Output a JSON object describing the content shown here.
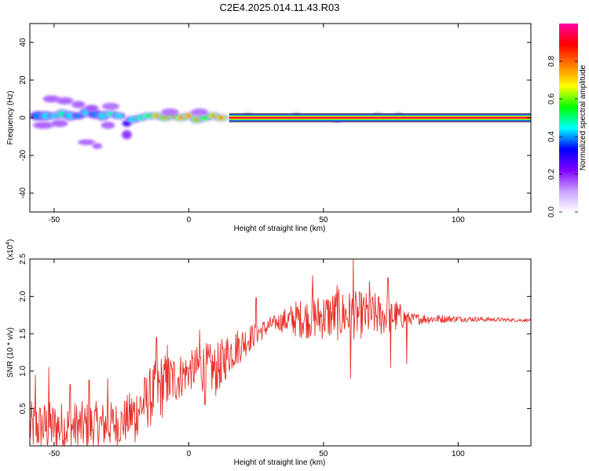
{
  "title": "C2E4.2025.014.11.43.R03",
  "chart_data": [
    {
      "type": "heatmap",
      "name": "spectrogram",
      "xlabel": "Height of straight line (km)",
      "ylabel": "Frequency (Hz)",
      "xlim": [
        -59,
        127
      ],
      "ylim": [
        -50,
        50
      ],
      "x_ticks": [
        -50,
        0,
        50,
        100
      ],
      "y_ticks": [
        -40,
        -20,
        0,
        20,
        40
      ],
      "colorbar": {
        "label": "Normalized spectral amplitude",
        "range": [
          0,
          1
        ],
        "ticks": [
          0.0,
          0.2,
          0.4,
          0.6,
          0.8
        ],
        "tick_labels": [
          "0.0",
          "0.2",
          "0.4",
          "0.6",
          "0.8"
        ],
        "colormap": [
          "#ffffff",
          "#c8a0ff",
          "#7f00ff",
          "#0000ff",
          "#00ffff",
          "#00ff00",
          "#ffff00",
          "#ff8000",
          "#ff0000",
          "#ff00a0"
        ]
      },
      "band": {
        "x_start": 15,
        "x_end": 127,
        "freq": 0,
        "half_width_hz": 1.5,
        "level": 0.95
      },
      "blobs": [
        {
          "x": -56,
          "y": 1,
          "w": 2.5,
          "h": 2,
          "v": 0.45
        },
        {
          "x": -53,
          "y": 1,
          "w": 2,
          "h": 2,
          "v": 0.5
        },
        {
          "x": -50,
          "y": 1,
          "w": 2,
          "h": 1.5,
          "v": 0.5
        },
        {
          "x": -47,
          "y": 2,
          "w": 2,
          "h": 2,
          "v": 0.55
        },
        {
          "x": -44,
          "y": 1,
          "w": 2,
          "h": 2,
          "v": 0.5
        },
        {
          "x": -41,
          "y": 1,
          "w": 2,
          "h": 1.5,
          "v": 0.45
        },
        {
          "x": -38,
          "y": 3,
          "w": 2,
          "h": 2,
          "v": 0.5
        },
        {
          "x": -35,
          "y": 2,
          "w": 2,
          "h": 2,
          "v": 0.45
        },
        {
          "x": -32,
          "y": 1,
          "w": 2,
          "h": 2,
          "v": 0.5
        },
        {
          "x": -29,
          "y": 2,
          "w": 2,
          "h": 1.5,
          "v": 0.55
        },
        {
          "x": -26,
          "y": 1,
          "w": 2,
          "h": 1.5,
          "v": 0.5
        },
        {
          "x": -23,
          "y": -3,
          "w": 1.5,
          "h": 1.5,
          "v": 0.4
        },
        {
          "x": -21,
          "y": -1,
          "w": 2,
          "h": 1.5,
          "v": 0.5
        },
        {
          "x": -18,
          "y": 0,
          "w": 2,
          "h": 1.5,
          "v": 0.55
        },
        {
          "x": -15,
          "y": 1,
          "w": 2,
          "h": 1.5,
          "v": 0.6
        },
        {
          "x": -12,
          "y": 1,
          "w": 2,
          "h": 1.5,
          "v": 0.75
        },
        {
          "x": -9,
          "y": 0,
          "w": 2,
          "h": 1.5,
          "v": 0.7
        },
        {
          "x": -6,
          "y": 1,
          "w": 2,
          "h": 1.5,
          "v": 0.7
        },
        {
          "x": -3,
          "y": 0,
          "w": 2,
          "h": 1.5,
          "v": 0.75
        },
        {
          "x": 0,
          "y": 1,
          "w": 2,
          "h": 1.5,
          "v": 0.8
        },
        {
          "x": 3,
          "y": -1,
          "w": 2,
          "h": 1.5,
          "v": 0.7
        },
        {
          "x": 6,
          "y": 0,
          "w": 2,
          "h": 1.5,
          "v": 0.65
        },
        {
          "x": 9,
          "y": 1,
          "w": 2,
          "h": 1.5,
          "v": 0.75
        },
        {
          "x": 12,
          "y": 0,
          "w": 2,
          "h": 1.5,
          "v": 0.8
        },
        {
          "x": -51,
          "y": 10,
          "w": 2.5,
          "h": 1.5,
          "v": 0.2
        },
        {
          "x": -46,
          "y": 9,
          "w": 2.5,
          "h": 1.5,
          "v": 0.2
        },
        {
          "x": -41,
          "y": 7,
          "w": 2,
          "h": 1.5,
          "v": 0.2
        },
        {
          "x": -36,
          "y": 5,
          "w": 2,
          "h": 1.5,
          "v": 0.22
        },
        {
          "x": -54,
          "y": -4,
          "w": 3,
          "h": 1.5,
          "v": 0.2
        },
        {
          "x": -48,
          "y": -3,
          "w": 2.5,
          "h": 1.5,
          "v": 0.2
        },
        {
          "x": -30,
          "y": -4,
          "w": 2,
          "h": 1.5,
          "v": 0.2
        },
        {
          "x": -23,
          "y": -9,
          "w": 1.5,
          "h": 2,
          "v": 0.25
        },
        {
          "x": -38,
          "y": -13,
          "w": 2.5,
          "h": 1.2,
          "v": 0.2
        },
        {
          "x": -34,
          "y": -15,
          "w": 1.5,
          "h": 1.2,
          "v": 0.2
        },
        {
          "x": -29,
          "y": 6,
          "w": 2.5,
          "h": 1.5,
          "v": 0.12
        },
        {
          "x": -7,
          "y": 3,
          "w": 2.5,
          "h": 1.5,
          "v": 0.12
        },
        {
          "x": 4,
          "y": 3,
          "w": 2.5,
          "h": 1.5,
          "v": 0.12
        },
        {
          "x": 22,
          "y": 1,
          "w": 1.5,
          "h": 1.2,
          "v": 0.15
        },
        {
          "x": 40,
          "y": 1,
          "w": 1.5,
          "h": 1.2,
          "v": 0.15
        },
        {
          "x": 55,
          "y": -1,
          "w": 1.5,
          "h": 1.2,
          "v": 0.15
        },
        {
          "x": 70,
          "y": 1,
          "w": 1.5,
          "h": 1.2,
          "v": 0.15
        },
        {
          "x": 78,
          "y": 1,
          "w": 1.5,
          "h": 1.2,
          "v": 0.15
        }
      ]
    },
    {
      "type": "line",
      "name": "snr",
      "xlabel": "Height of straight line (km)",
      "ylabel": "SNR (10 * v/v)",
      "y_multiplier_label": "(x10",
      "y_multiplier_exp": "4",
      "xlim": [
        -59,
        127
      ],
      "ylim": [
        0,
        2.5
      ],
      "x_ticks": [
        -50,
        0,
        50,
        100
      ],
      "y_ticks": [
        0.5,
        1.0,
        1.5,
        2.0,
        2.5
      ],
      "y_tick_labels": [
        "0.5",
        "1.0",
        "1.5",
        "2.0",
        "2.5"
      ],
      "color": "#e8302a",
      "envelope": [
        {
          "x": -59,
          "base": 0.25,
          "amp": 0.35
        },
        {
          "x": -40,
          "base": 0.25,
          "amp": 0.35
        },
        {
          "x": -25,
          "base": 0.3,
          "amp": 0.3
        },
        {
          "x": -20,
          "base": 0.45,
          "amp": 0.35
        },
        {
          "x": -10,
          "base": 0.8,
          "amp": 0.45
        },
        {
          "x": 0,
          "base": 1.0,
          "amp": 0.25
        },
        {
          "x": 5,
          "base": 1.05,
          "amp": 0.35
        },
        {
          "x": 10,
          "base": 1.0,
          "amp": 0.35
        },
        {
          "x": 15,
          "base": 1.25,
          "amp": 0.3
        },
        {
          "x": 25,
          "base": 1.5,
          "amp": 0.15
        },
        {
          "x": 32,
          "base": 1.65,
          "amp": 0.1
        },
        {
          "x": 40,
          "base": 1.7,
          "amp": 0.25
        },
        {
          "x": 55,
          "base": 1.75,
          "amp": 0.35
        },
        {
          "x": 75,
          "base": 1.75,
          "amp": 0.28
        },
        {
          "x": 82,
          "base": 1.7,
          "amp": 0.08
        },
        {
          "x": 100,
          "base": 1.7,
          "amp": 0.04
        },
        {
          "x": 127,
          "base": 1.68,
          "amp": 0.02
        }
      ],
      "spikes": [
        {
          "x": -57,
          "y": 0.95
        },
        {
          "x": -52,
          "y": 1.05
        },
        {
          "x": -44,
          "y": 0.82
        },
        {
          "x": -37,
          "y": 0.88
        },
        {
          "x": -30,
          "y": 0.9
        },
        {
          "x": -12,
          "y": 1.45
        },
        {
          "x": -8,
          "y": 1.35
        },
        {
          "x": 4,
          "y": 1.55
        },
        {
          "x": 12,
          "y": 1.25
        },
        {
          "x": 25,
          "y": 1.98
        },
        {
          "x": 46,
          "y": 2.28
        },
        {
          "x": 55,
          "y": 2.15
        },
        {
          "x": 61,
          "y": 2.5
        },
        {
          "x": 67,
          "y": 2.2
        },
        {
          "x": 74,
          "y": 2.25
        },
        {
          "x": 81,
          "y": 2.05
        }
      ],
      "dips": [
        {
          "x": -20,
          "y": 0.05
        },
        {
          "x": 6,
          "y": 0.55
        },
        {
          "x": 12,
          "y": 0.85
        },
        {
          "x": 60,
          "y": 0.9
        },
        {
          "x": 75,
          "y": 1.05
        },
        {
          "x": 81,
          "y": 1.1
        }
      ]
    }
  ]
}
